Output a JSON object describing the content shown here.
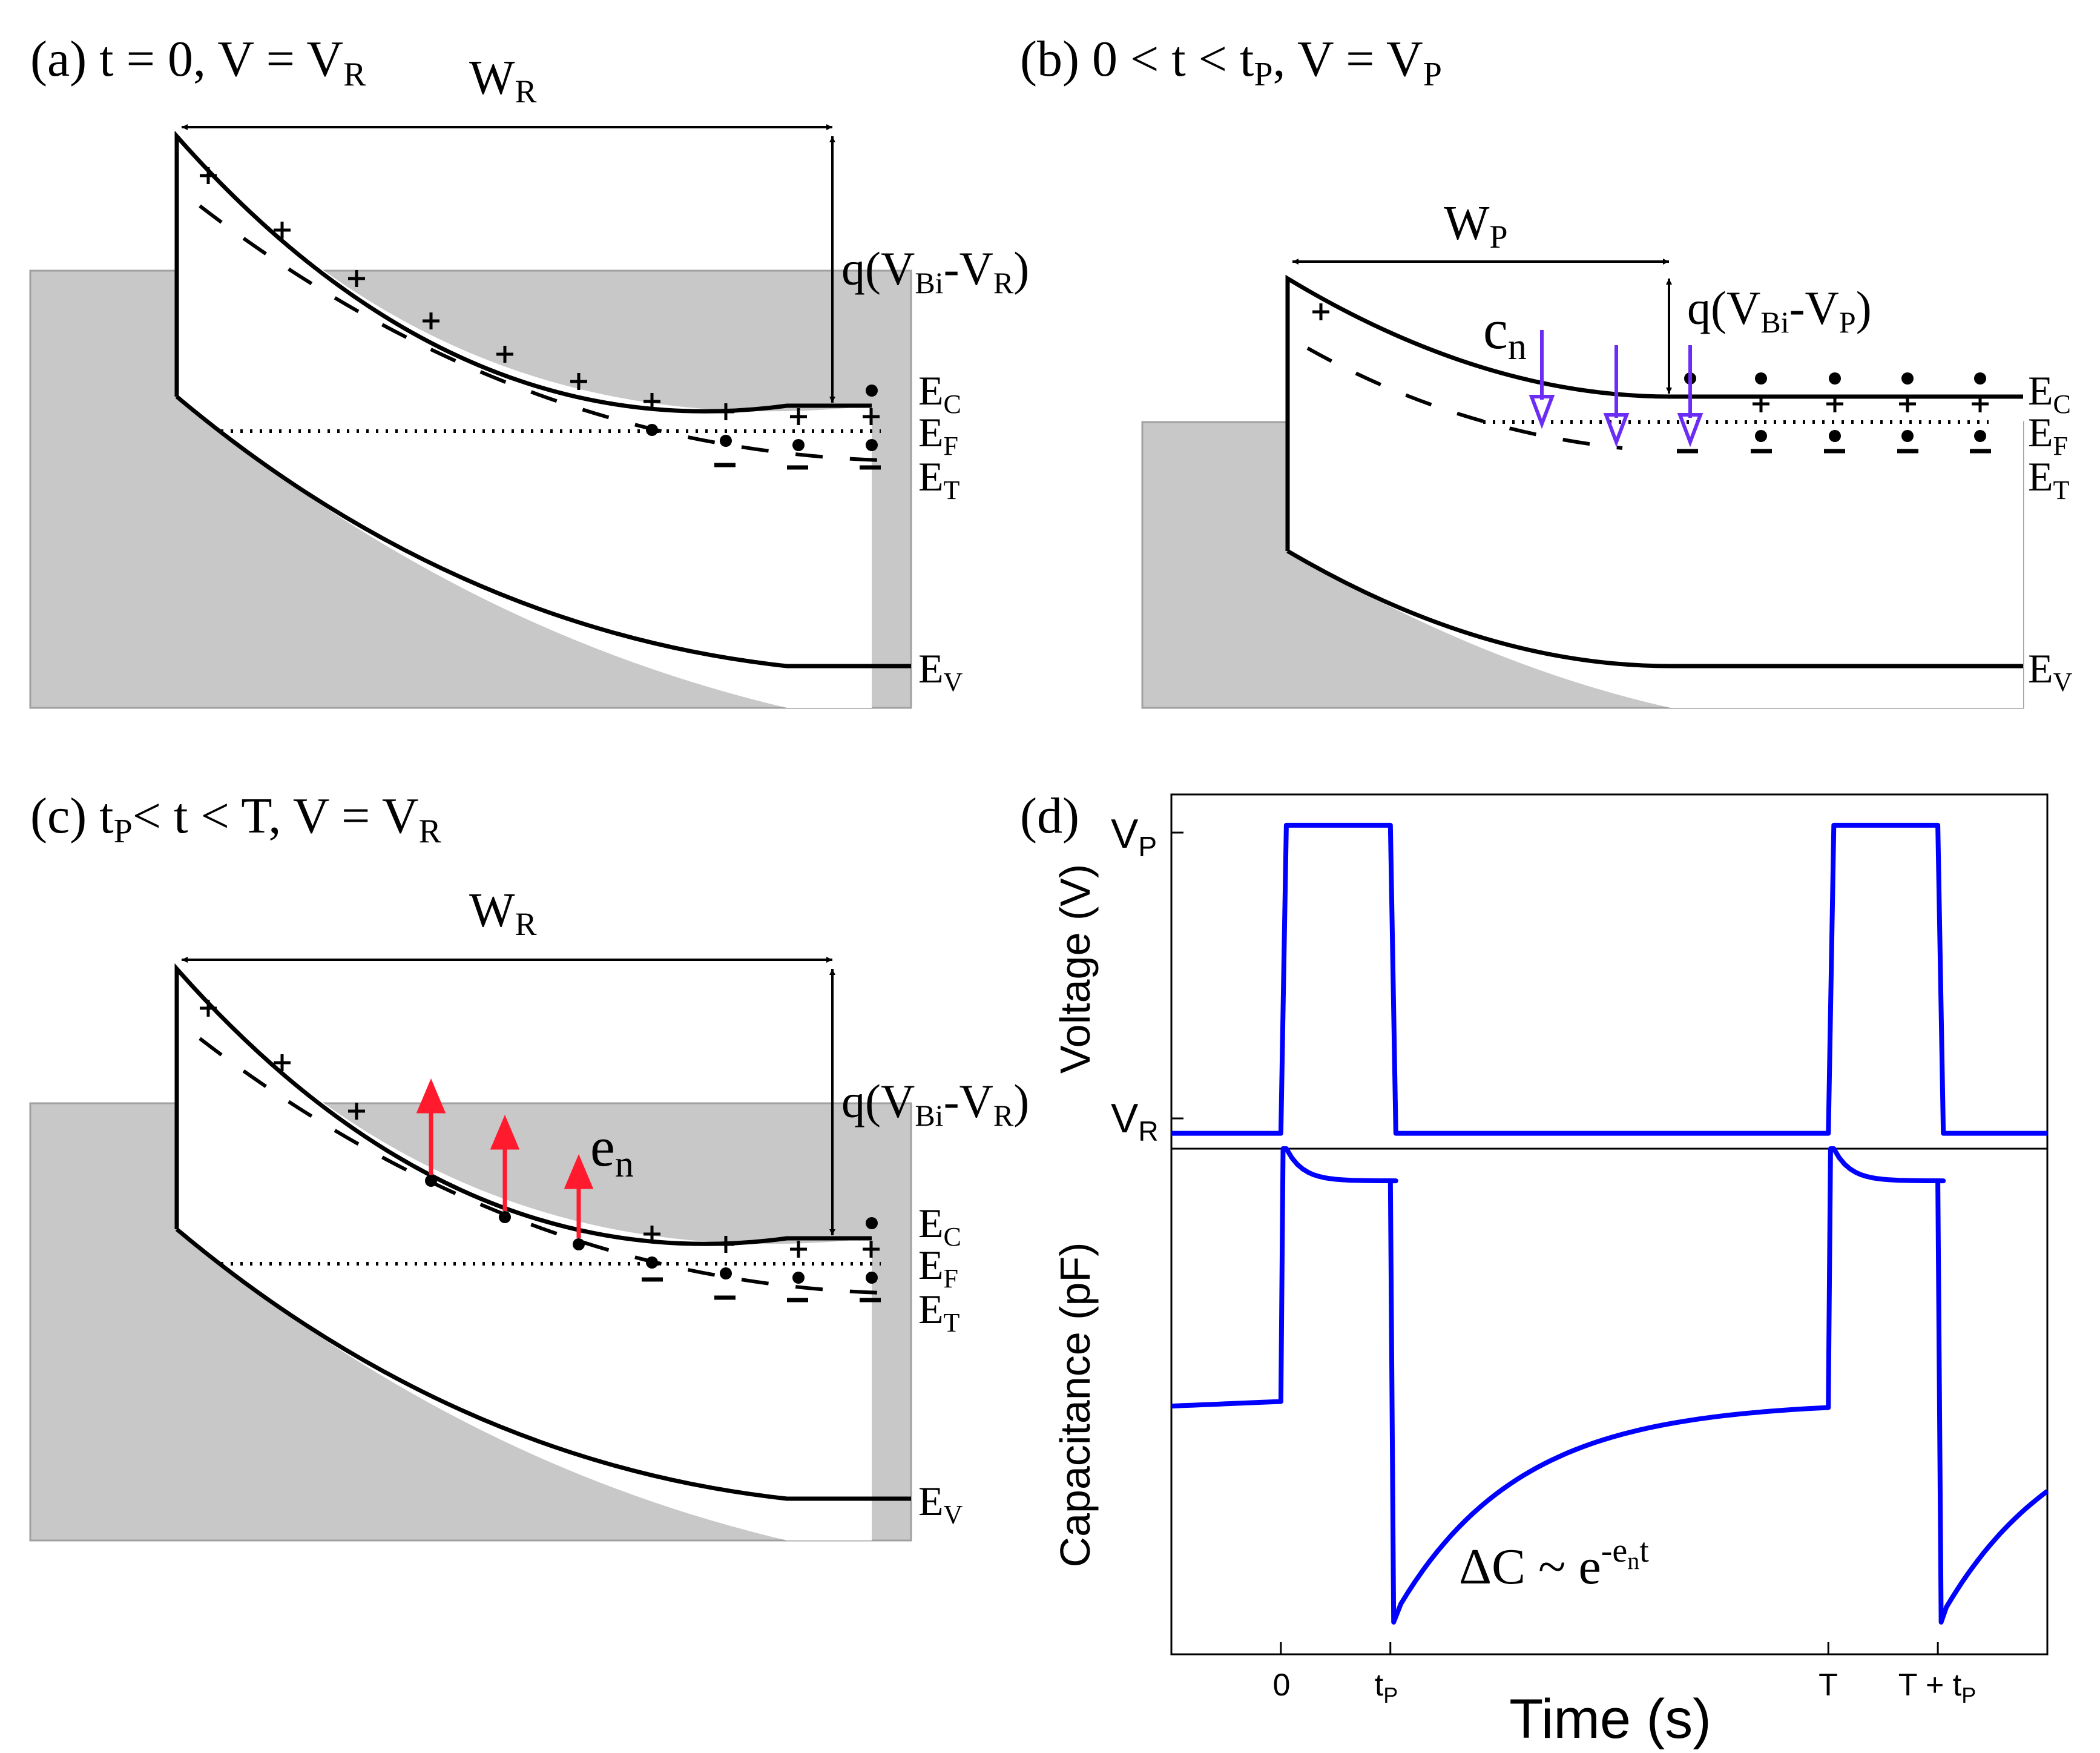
{
  "colors": {
    "band": "#000000",
    "substrate": "#c8c8c8",
    "arrow_capture": "#6b2cf5",
    "arrow_emission": "#ff1a2e",
    "trace": "#0000ff"
  },
  "panel_a": {
    "title": {
      "base": "(a) t = 0, V = V",
      "sub": "R"
    },
    "width": {
      "main": "W",
      "sub": "R"
    },
    "barrier": {
      "prefix": "q(V",
      "sub1": "Bi",
      "mid": "-V",
      "sub2": "R",
      "suffix": ")"
    }
  },
  "panel_b": {
    "title": {
      "p1": "(b) 0 < t < t",
      "s1": "P",
      "p2": ", V = V",
      "s2": "P"
    },
    "width": {
      "main": "W",
      "sub": "P"
    },
    "barrier": {
      "prefix": "q(V",
      "sub1": "Bi",
      "mid": "-V",
      "sub2": "P",
      "suffix": ")"
    },
    "capture": {
      "main": "c",
      "sub": "n"
    }
  },
  "panel_c": {
    "title": {
      "p1": "(c) t",
      "s1": "P",
      "p2": "< t < T, V = V",
      "s2": "R"
    },
    "width": {
      "main": "W",
      "sub": "R"
    },
    "barrier": {
      "prefix": "q(V",
      "sub1": "Bi",
      "mid": "-V",
      "sub2": "R",
      "suffix": ")"
    },
    "emission": {
      "main": "e",
      "sub": "n"
    }
  },
  "bands": {
    "ec": {
      "main": "E",
      "sub": "C"
    },
    "ef": {
      "main": "E",
      "sub": "F"
    },
    "et": {
      "main": "E",
      "sub": "T"
    },
    "ev": {
      "main": "E",
      "sub": "V"
    },
    "plus": "+",
    "minus": "–"
  },
  "panel_d": {
    "title": "(d)",
    "ylabel_top": "Voltage (V)",
    "ylabel_bottom": "Capacitance (pF)",
    "xlabel": "Time (s)",
    "vp": {
      "main": "V",
      "sub": "P"
    },
    "vr": {
      "main": "V",
      "sub": "R"
    },
    "ticks": {
      "zero": "0",
      "tp": {
        "main": "t",
        "sub": "P"
      },
      "T": "T",
      "Ttp": {
        "main": "T + t",
        "sub": "P"
      }
    },
    "annotation": {
      "main": "ΔC ~ e",
      "sup1": "-e",
      "sup_sub": "n",
      "sup2": "t"
    }
  },
  "chart_data": {
    "type": "line",
    "title": "",
    "xlabel": "Time (s)",
    "x_ticks": [
      "0",
      "tP",
      "T",
      "T + tP"
    ],
    "x_tick_values": [
      0,
      1,
      5,
      6
    ],
    "xlim": [
      -1,
      7
    ],
    "series": [
      {
        "name": "Voltage",
        "ylabel": "Voltage (V)",
        "y_ticks": [
          "VR",
          "VP"
        ],
        "ylim": [
          -0.05,
          1.1
        ],
        "x": [
          -1,
          0,
          0.05,
          1,
          1.05,
          5,
          5.05,
          6,
          6.05,
          7
        ],
        "y": [
          0,
          0,
          1,
          1,
          0,
          0,
          1,
          1,
          0,
          0
        ]
      },
      {
        "name": "Capacitance",
        "ylabel": "Capacitance (pF)",
        "ylim": [
          -0.05,
          1.05
        ],
        "baseline": 0.5,
        "high_plateau": 0.98,
        "high_overshoot": 1.05,
        "low_minimum": 0.02,
        "recovery_rate": 0.9,
        "annotation": "ΔC ~ e^(-e_n t)"
      }
    ]
  }
}
